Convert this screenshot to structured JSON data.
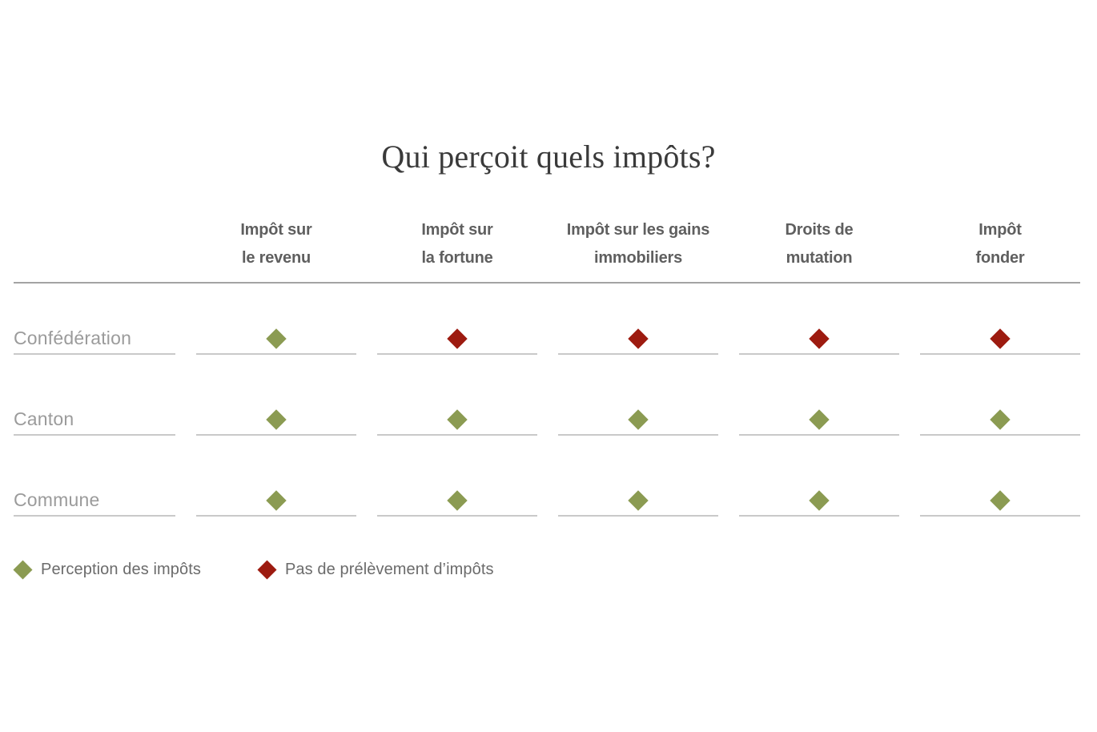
{
  "title": "Qui perçoit quels impôts?",
  "colors": {
    "perception": "#8b9b52",
    "pas-de-prelevement": "#9d1b10"
  },
  "legend": {
    "items": [
      {
        "key": "perception",
        "label": "Perception des impôts"
      },
      {
        "key": "pas-de-prelevement",
        "label": "Pas de prélèvement d’impôts"
      }
    ]
  },
  "chart_data": {
    "type": "table",
    "title": "Qui perçoit quels impôts?",
    "columns": [
      {
        "label": "Impôt sur le revenu",
        "lines": [
          "Impôt sur",
          "le revenu"
        ]
      },
      {
        "label": "Impôt sur la fortune",
        "lines": [
          "Impôt sur",
          "la fortune"
        ]
      },
      {
        "label": "Impôt sur les gains immobiliers",
        "lines": [
          "Impôt sur les gains",
          "immobiliers"
        ]
      },
      {
        "label": "Droits de mutation",
        "lines": [
          "Droits de",
          "mutation"
        ]
      },
      {
        "label": "Impôt fonder",
        "lines": [
          "Impôt",
          "fonder"
        ]
      }
    ],
    "rows": [
      {
        "label": "Confédération",
        "values": [
          "perception",
          "pas-de-prelevement",
          "pas-de-prelevement",
          "pas-de-prelevement",
          "pas-de-prelevement"
        ]
      },
      {
        "label": "Canton",
        "values": [
          "perception",
          "perception",
          "perception",
          "perception",
          "perception"
        ]
      },
      {
        "label": "Commune",
        "values": [
          "perception",
          "perception",
          "perception",
          "perception",
          "perception"
        ]
      }
    ],
    "legend_position": "bottom-left",
    "legend": {
      "perception": "Perception des impôts",
      "pas-de-prelevement": "Pas de prélèvement d’impôts"
    }
  }
}
